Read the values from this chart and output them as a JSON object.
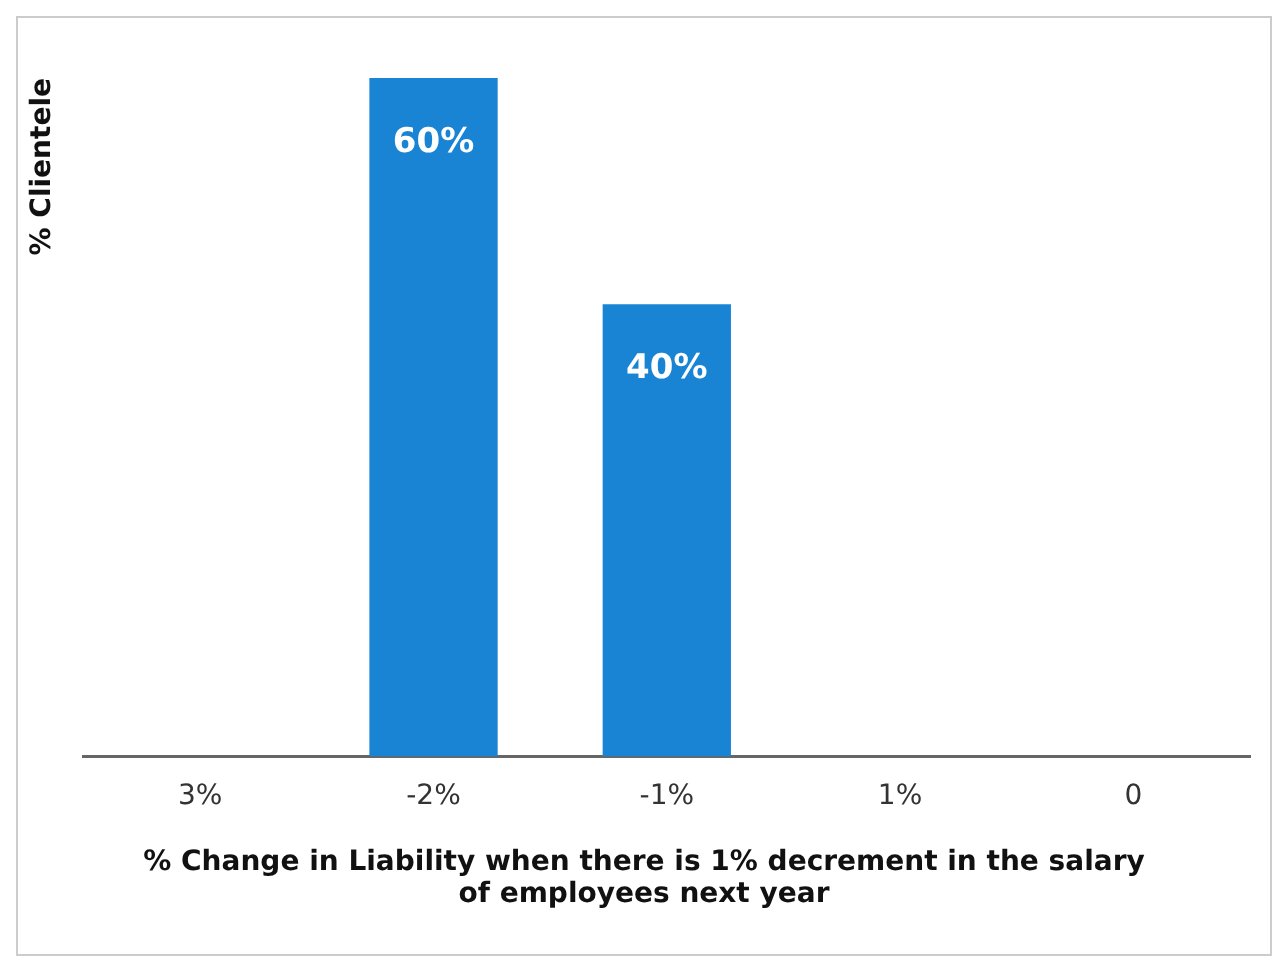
{
  "chart_data": {
    "type": "bar",
    "xlabel": "% Change in Liability when there is 1% decrement in the salary of employees next year",
    "ylabel": "% Clientele",
    "categories": [
      "3%",
      "-2%",
      "-1%",
      "1%",
      "0"
    ],
    "values": [
      null,
      60,
      40,
      null,
      null
    ],
    "color": "#1a84d4",
    "value_labels": [
      null,
      "60%",
      "40%",
      null,
      null
    ],
    "tick_labels": "x",
    "grid": false,
    "legend": false
  }
}
